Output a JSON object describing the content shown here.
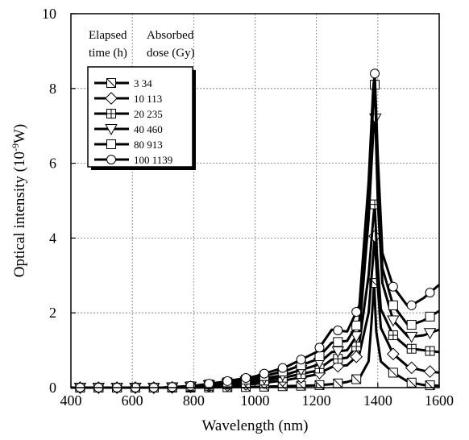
{
  "chart_data": {
    "type": "line",
    "xlabel": "Wavelength (nm)",
    "ylabel_main": "Optical intensity (10",
    "ylabel_exp": "-9",
    "ylabel_unit": "W)",
    "xlim": [
      400,
      1600
    ],
    "ylim": [
      0,
      10
    ],
    "xticks": [
      400,
      600,
      800,
      1000,
      1200,
      1400,
      1600
    ],
    "yticks": [
      0,
      2,
      4,
      6,
      8,
      10
    ],
    "grid": true,
    "legend_position": "top-left",
    "legend_header": {
      "col1_line1": "Elapsed",
      "col1_line2": "time (h)",
      "col2_line1": "Absorbed",
      "col2_line2": "dose (Gy)"
    },
    "series": [
      {
        "name": "3 34",
        "marker": "square-cross",
        "points": [
          [
            400,
            0
          ],
          [
            500,
            0
          ],
          [
            600,
            0
          ],
          [
            700,
            0
          ],
          [
            800,
            0
          ],
          [
            900,
            0.01
          ],
          [
            1000,
            0.02
          ],
          [
            1100,
            0.04
          ],
          [
            1200,
            0.06
          ],
          [
            1260,
            0.1
          ],
          [
            1300,
            0.15
          ],
          [
            1340,
            0.25
          ],
          [
            1370,
            0.7
          ],
          [
            1380,
            1.8
          ],
          [
            1388,
            2.8
          ],
          [
            1395,
            1.5
          ],
          [
            1410,
            0.7
          ],
          [
            1450,
            0.4
          ],
          [
            1500,
            0.15
          ],
          [
            1550,
            0.07
          ],
          [
            1600,
            0.05
          ]
        ]
      },
      {
        "name": "10 113",
        "marker": "diamond",
        "points": [
          [
            400,
            0
          ],
          [
            500,
            0
          ],
          [
            600,
            0
          ],
          [
            700,
            0
          ],
          [
            800,
            0.02
          ],
          [
            900,
            0.05
          ],
          [
            1000,
            0.1
          ],
          [
            1100,
            0.2
          ],
          [
            1200,
            0.35
          ],
          [
            1250,
            0.55
          ],
          [
            1300,
            0.6
          ],
          [
            1340,
            0.9
          ],
          [
            1370,
            2.0
          ],
          [
            1385,
            3.5
          ],
          [
            1390,
            4.05
          ],
          [
            1397,
            3.0
          ],
          [
            1410,
            1.6
          ],
          [
            1450,
            0.9
          ],
          [
            1500,
            0.55
          ],
          [
            1550,
            0.45
          ],
          [
            1600,
            0.4
          ]
        ]
      },
      {
        "name": "20 235",
        "marker": "square-plus",
        "points": [
          [
            400,
            0
          ],
          [
            500,
            0
          ],
          [
            600,
            0
          ],
          [
            700,
            0
          ],
          [
            800,
            0.02
          ],
          [
            900,
            0.08
          ],
          [
            1000,
            0.15
          ],
          [
            1100,
            0.28
          ],
          [
            1200,
            0.45
          ],
          [
            1250,
            0.75
          ],
          [
            1300,
            0.8
          ],
          [
            1340,
            1.2
          ],
          [
            1370,
            3.0
          ],
          [
            1385,
            4.5
          ],
          [
            1390,
            4.9
          ],
          [
            1397,
            3.6
          ],
          [
            1410,
            2.1
          ],
          [
            1450,
            1.4
          ],
          [
            1500,
            1.05
          ],
          [
            1550,
            1.0
          ],
          [
            1600,
            0.95
          ]
        ]
      },
      {
        "name": "40 460",
        "marker": "triangle-down",
        "points": [
          [
            400,
            0
          ],
          [
            500,
            0
          ],
          [
            600,
            0
          ],
          [
            700,
            0
          ],
          [
            800,
            0.03
          ],
          [
            900,
            0.1
          ],
          [
            1000,
            0.2
          ],
          [
            1100,
            0.35
          ],
          [
            1200,
            0.6
          ],
          [
            1250,
            0.95
          ],
          [
            1300,
            1.0
          ],
          [
            1340,
            1.5
          ],
          [
            1370,
            4.5
          ],
          [
            1385,
            6.8
          ],
          [
            1392,
            7.2
          ],
          [
            1400,
            5.0
          ],
          [
            1415,
            2.8
          ],
          [
            1450,
            1.8
          ],
          [
            1500,
            1.35
          ],
          [
            1550,
            1.4
          ],
          [
            1600,
            1.55
          ]
        ]
      },
      {
        "name": "80 913",
        "marker": "square",
        "points": [
          [
            400,
            0
          ],
          [
            500,
            0
          ],
          [
            600,
            0
          ],
          [
            700,
            0
          ],
          [
            800,
            0.04
          ],
          [
            900,
            0.13
          ],
          [
            1000,
            0.25
          ],
          [
            1100,
            0.45
          ],
          [
            1200,
            0.75
          ],
          [
            1250,
            1.2
          ],
          [
            1300,
            1.25
          ],
          [
            1340,
            1.8
          ],
          [
            1370,
            5.0
          ],
          [
            1385,
            7.6
          ],
          [
            1390,
            8.1
          ],
          [
            1400,
            5.8
          ],
          [
            1415,
            3.2
          ],
          [
            1450,
            2.2
          ],
          [
            1500,
            1.65
          ],
          [
            1550,
            1.8
          ],
          [
            1600,
            2.05
          ]
        ]
      },
      {
        "name": "100 1139",
        "marker": "circle",
        "points": [
          [
            400,
            0
          ],
          [
            500,
            0
          ],
          [
            600,
            0
          ],
          [
            700,
            0
          ],
          [
            800,
            0.05
          ],
          [
            900,
            0.16
          ],
          [
            1000,
            0.3
          ],
          [
            1100,
            0.55
          ],
          [
            1200,
            0.95
          ],
          [
            1250,
            1.55
          ],
          [
            1300,
            1.5
          ],
          [
            1340,
            2.2
          ],
          [
            1370,
            5.5
          ],
          [
            1385,
            8.0
          ],
          [
            1390,
            8.4
          ],
          [
            1400,
            6.2
          ],
          [
            1415,
            3.6
          ],
          [
            1450,
            2.7
          ],
          [
            1500,
            2.15
          ],
          [
            1550,
            2.4
          ],
          [
            1600,
            2.75
          ]
        ]
      }
    ]
  }
}
